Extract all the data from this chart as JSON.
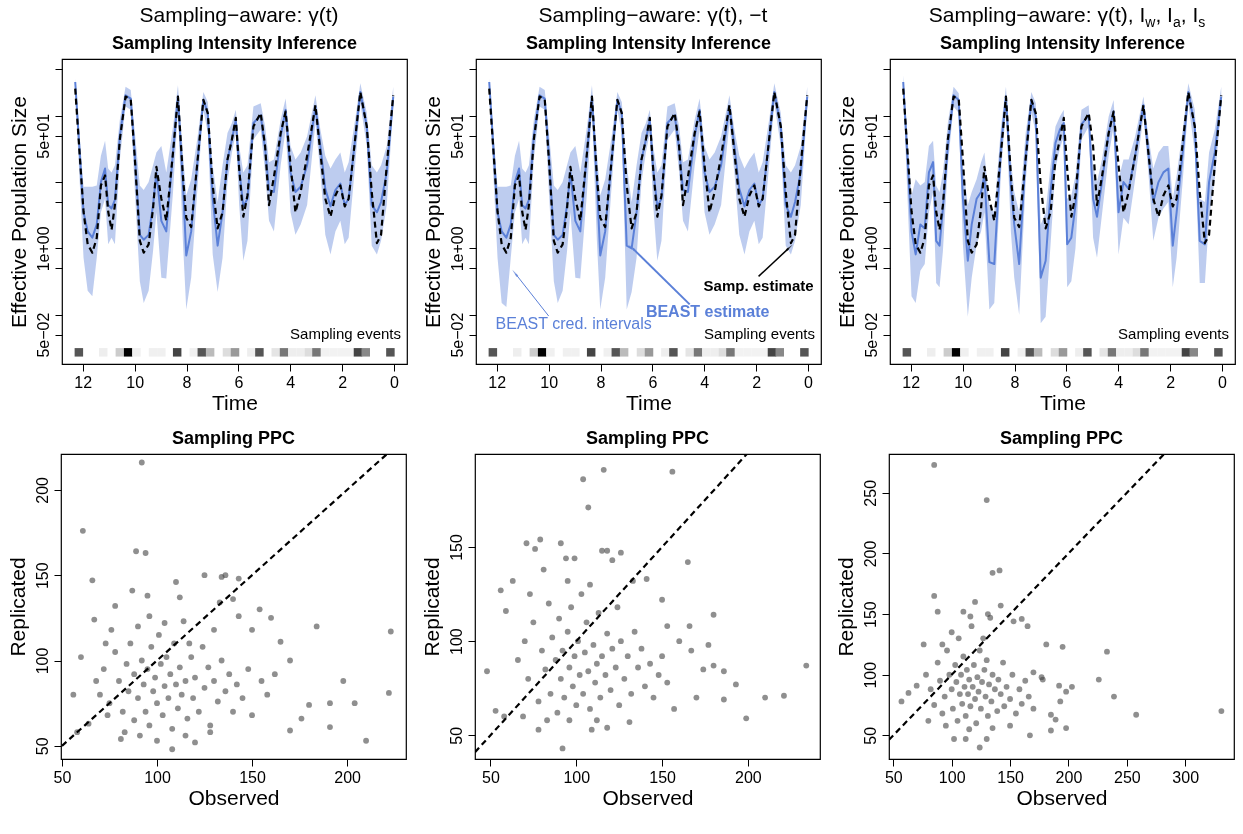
{
  "chart_data": [
    {
      "type": "line",
      "title": "Sampling−aware: γ(t)",
      "subtitle": "Sampling Intensity Inference",
      "xlabel": "Time",
      "ylabel": "Effective Population Size",
      "log": true,
      "xlim": [
        12.8,
        -0.5
      ],
      "xticks": [
        12,
        10,
        8,
        6,
        4,
        2,
        0
      ],
      "ylim": [
        0.018,
        720
      ],
      "yticks": [
        {
          "value": 0.05,
          "label": "5e−02"
        },
        {
          "value": 0.1,
          "label": null
        },
        {
          "value": 0.5,
          "label": null
        },
        {
          "value": 1,
          "label": "1e+00"
        },
        {
          "value": 5,
          "label": null
        },
        {
          "value": 10,
          "label": null
        },
        {
          "value": 50,
          "label": "5e+01"
        },
        {
          "value": 100,
          "label": null
        },
        {
          "value": 500,
          "label": null
        }
      ],
      "x": [
        12.29,
        11.97,
        11.81,
        11.63,
        11.46,
        11.3,
        11.14,
        11.02,
        10.89,
        10.76,
        10.57,
        10.35,
        10.15,
        9.99,
        9.8,
        9.65,
        9.46,
        9.29,
        9.16,
        8.97,
        8.78,
        8.52,
        8.33,
        8.14,
        8.01,
        7.82,
        7.57,
        7.35,
        7.18,
        6.99,
        6.8,
        6.61,
        6.42,
        6.25,
        6.1,
        5.97,
        5.81,
        5.65,
        5.42,
        5.14,
        4.97,
        4.82,
        4.63,
        4.37,
        4.18,
        3.99,
        3.8,
        3.6,
        3.35,
        3.03,
        2.84,
        2.65,
        2.45,
        2.26,
        2.07,
        1.9,
        1.75,
        1.5,
        1.3,
        1.05,
        0.86,
        0.66,
        0.5,
        0.28,
        0.03
      ],
      "annotations": [
        "Sampling events"
      ],
      "series": [
        {
          "color": "#5b80d8",
          "values": [
            324,
            3.5,
            1.8,
            1.45,
            2.3,
            10,
            16,
            4.5,
            4,
            5.4,
            49,
            204,
            182,
            25,
            1.6,
            1.35,
            1.6,
            4.5,
            14,
            2.6,
            1.8,
            28,
            195,
            10,
            0.78,
            1.8,
            22,
            174,
            110,
            5.6,
            1.1,
            3.5,
            22,
            44,
            87,
            16,
            4.3,
            5.6,
            78,
            102,
            32,
            7.6,
            7.1,
            49,
            123,
            14,
            7.1,
            8.5,
            18,
            138,
            35,
            7.9,
            4.3,
            7.6,
            9.5,
            4.5,
            5.6,
            44,
            229,
            69,
            4.5,
            3.5,
            5,
            14,
            195
          ],
          "upper": [
            363,
            8.5,
            8.5,
            8.5,
            8.9,
            25,
            42,
            16,
            14,
            18,
            87,
            275,
            245,
            55,
            8.9,
            7.6,
            10,
            18,
            28,
            35,
            14,
            69,
            288,
            28,
            6.3,
            11,
            49,
            229,
            162,
            18,
            5,
            18,
            55,
            78,
            123,
            35,
            14,
            18,
            138,
            155,
            69,
            20,
            22,
            87,
            182,
            35,
            22,
            28,
            49,
            204,
            62,
            25,
            16,
            22,
            28,
            14,
            20,
            87,
            309,
            110,
            18,
            14,
            18,
            35,
            275
          ],
          "lower": [
            219,
            0.72,
            0.23,
            0.19,
            0.72,
            3.5,
            5.6,
            1.15,
            1.45,
            1.15,
            22,
            138,
            123,
            7.1,
            0.32,
            0.15,
            0.23,
            0.91,
            3.5,
            0.36,
            0.35,
            7.1,
            123,
            1.3,
            0.12,
            0.36,
            8.9,
            123,
            55,
            0.81,
            0.22,
            0.72,
            10,
            28,
            55,
            4.5,
            0.65,
            1.3,
            44,
            62,
            14,
            2.6,
            1.8,
            18,
            62,
            3.5,
            1.6,
            2.3,
            4.5,
            78,
            14,
            1.6,
            0.81,
            1.8,
            2.6,
            1.15,
            1.45,
            18,
            155,
            35,
            1.1,
            0.81,
            1.3,
            4.5,
            138
          ]
        },
        {
          "color": "#000000",
          "line_style": "dashed",
          "values": [
            257,
            3.6,
            1.15,
            0.86,
            1.44,
            8.9,
            12.6,
            3.6,
            1.9,
            4.5,
            44,
            195,
            178,
            22,
            1.3,
            0.86,
            1.15,
            4,
            17,
            5.6,
            2.6,
            28,
            195,
            12.6,
            2.9,
            2.1,
            22,
            174,
            110,
            8.9,
            2.0,
            3.5,
            22,
            44,
            93,
            16,
            3.0,
            6.3,
            69,
            110,
            35,
            4.5,
            12,
            55,
            116,
            18,
            3.5,
            7.1,
            25,
            145,
            28,
            5.6,
            3.0,
            6.3,
            8.9,
            4.3,
            5.6,
            44,
            229,
            69,
            7.1,
            1.2,
            1.6,
            18,
            204
          ]
        },
        {
          "type": "scatter",
          "marker": "square",
          "x": [
            12.15,
            11.21,
            10.57,
            10.25,
            9.93,
            9.29,
            8.97,
            8.36,
            7.72,
            7.41,
            7.09,
            6.44,
            6.13,
            5.5,
            5.19,
            4.56,
            4.24,
            3.92,
            3.6,
            3.28,
            2.99,
            2.65,
            2.33,
            2.01,
            1.69,
            1.39,
            1.09,
            0.14
          ],
          "values": [
            0.027,
            0.027,
            0.027,
            0.027,
            0.027,
            0.027,
            0.027,
            0.027,
            0.027,
            0.027,
            0.027,
            0.027,
            0.027,
            0.027,
            0.027,
            0.027,
            0.027,
            0.027,
            0.027,
            0.027,
            0.027,
            0.027,
            0.027,
            0.027,
            0.027,
            0.027,
            0.027,
            0.027
          ],
          "colors": [
            "#555555",
            "#eeeeee",
            "#cccccc",
            "#000000",
            "#f0f0f0",
            "#f0f0f0",
            "#f0f0f0",
            "#444444",
            "#f0f0f0",
            "#555555",
            "#bbbbbb",
            "#dddddd",
            "#999999",
            "#eeeeee",
            "#555555",
            "#e5e5e5",
            "#777777",
            "#eeeeee",
            "#eeeeee",
            "#dddddd",
            "#777777",
            "#f2f2f2",
            "#f2f2f2",
            "#f2f2f2",
            "#f2f2f2",
            "#444444",
            "#888888",
            "#555555"
          ]
        }
      ]
    },
    {
      "type": "line",
      "title": "Sampling−aware: γ(t), −t",
      "subtitle": "Sampling Intensity Inference",
      "xlabel": "Time",
      "ylabel": "Effective Population Size",
      "log": true,
      "xlim": [
        12.8,
        -0.5
      ],
      "xticks": [
        12,
        10,
        8,
        6,
        4,
        2,
        0
      ],
      "ylim": [
        0.018,
        720
      ],
      "yticks": [
        {
          "value": 0.05,
          "label": "5e−02"
        },
        {
          "value": 0.1,
          "label": null
        },
        {
          "value": 0.5,
          "label": null
        },
        {
          "value": 1,
          "label": "1e+00"
        },
        {
          "value": 5,
          "label": null
        },
        {
          "value": 10,
          "label": null
        },
        {
          "value": 50,
          "label": "5e+01"
        },
        {
          "value": 100,
          "label": null
        },
        {
          "value": 500,
          "label": null
        }
      ],
      "x": [
        12.29,
        11.97,
        11.81,
        11.63,
        11.46,
        11.3,
        11.14,
        11.02,
        10.89,
        10.76,
        10.57,
        10.35,
        10.15,
        9.99,
        9.8,
        9.65,
        9.46,
        9.29,
        9.16,
        8.97,
        8.78,
        8.52,
        8.33,
        8.14,
        8.01,
        7.82,
        7.57,
        7.35,
        7.18,
        6.99,
        6.8,
        6.61,
        6.42,
        6.25,
        6.1,
        5.97,
        5.81,
        5.65,
        5.42,
        5.14,
        4.97,
        4.82,
        4.63,
        4.37,
        4.18,
        3.99,
        3.8,
        3.6,
        3.35,
        3.03,
        2.84,
        2.65,
        2.45,
        2.26,
        2.07,
        1.9,
        1.75,
        1.5,
        1.3,
        1.05,
        0.86,
        0.66,
        0.5,
        0.28,
        0.03
      ],
      "annotations": [
        "Sampling events",
        {
          "text": "BEAST cred. intervals",
          "x": 11.27,
          "y": 0.41
        },
        {
          "text": "BEAST estimate",
          "x": 6.76,
          "y": 1
        },
        {
          "text": "Samp. estimate",
          "x": 0.75,
          "y": 1
        }
      ],
      "series": [
        {
          "color": "#5b80d8",
          "values": [
            324,
            3.5,
            1.8,
            1.45,
            2.3,
            10,
            16,
            4.5,
            4,
            5.4,
            49,
            204,
            182,
            25,
            1.6,
            1.35,
            1.6,
            4.5,
            14,
            2.6,
            1.8,
            28,
            195,
            10,
            0.78,
            1.8,
            22,
            174,
            110,
            1.1,
            1.0,
            3.5,
            22,
            44,
            87,
            16,
            4.3,
            5.6,
            78,
            102,
            32,
            7.6,
            7.1,
            49,
            123,
            14,
            7.1,
            8.5,
            18,
            138,
            35,
            7.9,
            4.3,
            7.6,
            9.5,
            4.5,
            5.6,
            44,
            229,
            69,
            4.5,
            3.0,
            5,
            14,
            195
          ],
          "upper": [
            363,
            8.5,
            8.5,
            8.5,
            8.9,
            25,
            42,
            16,
            14,
            18,
            87,
            275,
            245,
            55,
            8.9,
            7.6,
            10,
            18,
            28,
            35,
            14,
            69,
            288,
            28,
            6.3,
            11,
            49,
            229,
            162,
            18,
            5,
            18,
            55,
            78,
            123,
            35,
            14,
            18,
            138,
            155,
            69,
            20,
            22,
            87,
            182,
            35,
            22,
            28,
            49,
            204,
            62,
            25,
            16,
            22,
            28,
            14,
            20,
            87,
            309,
            110,
            18,
            14,
            18,
            35,
            275
          ],
          "lower": [
            219,
            0.72,
            0.15,
            0.13,
            0.72,
            3.5,
            5.6,
            1.15,
            1.45,
            1.15,
            22,
            138,
            123,
            7.1,
            0.32,
            0.15,
            0.23,
            0.91,
            3.5,
            0.36,
            0.35,
            7.1,
            123,
            1.3,
            0.12,
            0.36,
            8.9,
            123,
            55,
            0.12,
            0.22,
            0.72,
            10,
            28,
            55,
            4.5,
            0.65,
            1.3,
            44,
            62,
            14,
            2.6,
            1.8,
            18,
            62,
            3.5,
            1.6,
            2.3,
            4.5,
            78,
            14,
            1.6,
            0.81,
            1.8,
            2.6,
            1.15,
            1.45,
            18,
            155,
            35,
            1.1,
            0.81,
            1.3,
            4.5,
            138
          ]
        },
        {
          "color": "#000000",
          "line_style": "dashed",
          "values": [
            257,
            3.6,
            1.15,
            0.86,
            1.44,
            8.9,
            12.6,
            3.6,
            1.9,
            4.5,
            44,
            195,
            178,
            22,
            1.3,
            0.86,
            1.15,
            4,
            17,
            5.6,
            2.6,
            28,
            195,
            12.6,
            2.9,
            2.1,
            22,
            174,
            110,
            8.9,
            2.0,
            3.5,
            22,
            44,
            93,
            16,
            3.0,
            6.3,
            69,
            110,
            35,
            4.5,
            12,
            55,
            116,
            18,
            3.5,
            7.1,
            25,
            145,
            28,
            5.6,
            3.0,
            6.3,
            8.9,
            4.3,
            5.6,
            44,
            229,
            69,
            7.1,
            1.2,
            1.6,
            18,
            204
          ]
        },
        {
          "type": "scatter",
          "marker": "square",
          "x": [
            12.15,
            11.21,
            10.57,
            10.25,
            9.93,
            9.29,
            8.97,
            8.36,
            7.72,
            7.41,
            7.09,
            6.44,
            6.13,
            5.5,
            5.19,
            4.56,
            4.24,
            3.92,
            3.6,
            3.28,
            2.99,
            2.65,
            2.33,
            2.01,
            1.69,
            1.39,
            1.09,
            0.14
          ],
          "values": [
            0.027,
            0.027,
            0.027,
            0.027,
            0.027,
            0.027,
            0.027,
            0.027,
            0.027,
            0.027,
            0.027,
            0.027,
            0.027,
            0.027,
            0.027,
            0.027,
            0.027,
            0.027,
            0.027,
            0.027,
            0.027,
            0.027,
            0.027,
            0.027,
            0.027,
            0.027,
            0.027,
            0.027
          ],
          "colors": [
            "#555555",
            "#eeeeee",
            "#cccccc",
            "#000000",
            "#f0f0f0",
            "#f0f0f0",
            "#f0f0f0",
            "#444444",
            "#f0f0f0",
            "#555555",
            "#bbbbbb",
            "#dddddd",
            "#999999",
            "#eeeeee",
            "#555555",
            "#e5e5e5",
            "#777777",
            "#eeeeee",
            "#eeeeee",
            "#dddddd",
            "#777777",
            "#f2f2f2",
            "#f2f2f2",
            "#f2f2f2",
            "#f2f2f2",
            "#444444",
            "#888888",
            "#555555"
          ]
        }
      ]
    },
    {
      "type": "line",
      "title": "Sampling−aware: γ(t), I$_{w}$, I$_{a}$, I$_{s}$",
      "subtitle": "Sampling Intensity Inference",
      "xlabel": "Time",
      "ylabel": "Effective Population Size",
      "log": true,
      "xlim": [
        12.8,
        -0.5
      ],
      "xticks": [
        12,
        10,
        8,
        6,
        4,
        2,
        0
      ],
      "ylim": [
        0.018,
        720
      ],
      "yticks": [
        {
          "value": 0.05,
          "label": "5e−02"
        },
        {
          "value": 0.1,
          "label": null
        },
        {
          "value": 0.5,
          "label": null
        },
        {
          "value": 1,
          "label": "1e+00"
        },
        {
          "value": 5,
          "label": null
        },
        {
          "value": 10,
          "label": null
        },
        {
          "value": 50,
          "label": "5e+01"
        },
        {
          "value": 100,
          "label": null
        },
        {
          "value": 500,
          "label": null
        }
      ],
      "x": [
        12.29,
        11.97,
        11.81,
        11.63,
        11.46,
        11.3,
        11.14,
        11.02,
        10.89,
        10.76,
        10.57,
        10.35,
        10.15,
        9.99,
        9.8,
        9.65,
        9.46,
        9.29,
        9.16,
        8.97,
        8.78,
        8.52,
        8.33,
        8.14,
        8.01,
        7.82,
        7.57,
        7.35,
        7.18,
        6.99,
        6.8,
        6.61,
        6.42,
        6.25,
        6.1,
        5.97,
        5.81,
        5.65,
        5.42,
        5.14,
        4.97,
        4.82,
        4.63,
        4.37,
        4.18,
        3.99,
        3.8,
        3.6,
        3.35,
        3.03,
        2.84,
        2.65,
        2.45,
        2.26,
        2.07,
        1.9,
        1.75,
        1.5,
        1.3,
        1.05,
        0.86,
        0.66,
        0.5,
        0.28,
        0.03
      ],
      "annotations": [
        "Sampling events"
      ],
      "series": [
        {
          "color": "#5b80d8",
          "values": [
            324,
            1.8,
            0.81,
            2.3,
            2.0,
            14,
            20,
            1.3,
            1.1,
            4,
            35,
            204,
            174,
            5.6,
            0.65,
            2.3,
            5.6,
            7.1,
            12.6,
            0.62,
            0.58,
            35,
            195,
            8.9,
            2.3,
            0.58,
            25,
            174,
            98,
            0.36,
            0.65,
            7.1,
            39,
            62,
            78,
            1.15,
            1.45,
            4.5,
            74,
            102,
            5.6,
            3.0,
            10,
            55,
            116,
            3.5,
            10,
            7.9,
            25,
            145,
            28,
            5,
            10,
            14,
            16,
            1.1,
            3.5,
            32,
            229,
            69,
            1.3,
            1.15,
            10,
            28,
            195
          ],
          "upper": [
            407,
            6.3,
            11,
            8.9,
            10,
            35,
            42,
            8.9,
            7.1,
            14,
            78,
            275,
            219,
            18,
            4.5,
            7.1,
            11,
            20,
            28,
            4.5,
            3.5,
            69,
            275,
            22,
            7.1,
            3.5,
            55,
            229,
            155,
            2.3,
            3.5,
            18,
            69,
            98,
            123,
            5.6,
            6.3,
            12.6,
            123,
            145,
            18,
            10,
            22,
            98,
            174,
            11,
            22,
            22,
            49,
            195,
            49,
            16,
            28,
            35,
            35,
            5.6,
            12.6,
            69,
            309,
            123,
            5.6,
            5,
            28,
            62,
            275
          ],
          "lower": [
            229,
            0.19,
            0.15,
            0.46,
            0.58,
            3.5,
            7.1,
            0.3,
            0.26,
            0.91,
            18,
            138,
            110,
            1.15,
            0.093,
            0.36,
            1.15,
            1.8,
            3.5,
            0.12,
            0.15,
            14,
            123,
            1.8,
            0.36,
            0.1,
            10,
            110,
            55,
            0.074,
            0.093,
            1.15,
            16,
            32,
            49,
            0.26,
            0.32,
            1.0,
            44,
            69,
            1.45,
            0.72,
            3.2,
            25,
            69,
            0.81,
            2.9,
            2.3,
            11,
            98,
            14,
            1.3,
            2.9,
            4,
            5,
            0.26,
            0.72,
            12.6,
            155,
            28,
            0.3,
            0.3,
            2.9,
            11,
            138
          ]
        },
        {
          "color": "#000000",
          "line_style": "dashed",
          "values": [
            257,
            3.6,
            1.15,
            0.86,
            1.44,
            8.9,
            12.6,
            3.6,
            1.9,
            4.5,
            44,
            195,
            178,
            22,
            1.3,
            0.86,
            1.15,
            4,
            17,
            5.6,
            2.6,
            28,
            195,
            12.6,
            2.9,
            2.1,
            22,
            174,
            110,
            8.9,
            2.0,
            3.5,
            22,
            44,
            93,
            16,
            3.0,
            6.3,
            69,
            110,
            35,
            4.5,
            12,
            55,
            116,
            18,
            3.5,
            7.1,
            25,
            145,
            28,
            5.6,
            3.0,
            6.3,
            8.9,
            4.3,
            5.6,
            44,
            229,
            69,
            7.1,
            1.2,
            1.6,
            18,
            204
          ]
        },
        {
          "type": "scatter",
          "marker": "square",
          "x": [
            12.15,
            11.21,
            10.57,
            10.25,
            9.93,
            9.29,
            8.97,
            8.36,
            7.72,
            7.41,
            7.09,
            6.44,
            6.13,
            5.5,
            5.19,
            4.56,
            4.24,
            3.92,
            3.6,
            3.28,
            2.99,
            2.65,
            2.33,
            2.01,
            1.69,
            1.39,
            1.09,
            0.14
          ],
          "values": [
            0.027,
            0.027,
            0.027,
            0.027,
            0.027,
            0.027,
            0.027,
            0.027,
            0.027,
            0.027,
            0.027,
            0.027,
            0.027,
            0.027,
            0.027,
            0.027,
            0.027,
            0.027,
            0.027,
            0.027,
            0.027,
            0.027,
            0.027,
            0.027,
            0.027,
            0.027,
            0.027,
            0.027
          ],
          "colors": [
            "#555555",
            "#eeeeee",
            "#cccccc",
            "#000000",
            "#f0f0f0",
            "#f0f0f0",
            "#f0f0f0",
            "#444444",
            "#f0f0f0",
            "#555555",
            "#bbbbbb",
            "#dddddd",
            "#999999",
            "#eeeeee",
            "#555555",
            "#e5e5e5",
            "#777777",
            "#eeeeee",
            "#eeeeee",
            "#dddddd",
            "#777777",
            "#f2f2f2",
            "#f2f2f2",
            "#f2f2f2",
            "#f2f2f2",
            "#444444",
            "#888888",
            "#555555"
          ]
        }
      ]
    },
    {
      "type": "scatter",
      "title": "Sampling PPC",
      "xlabel": "Observed",
      "ylabel": "Replicated",
      "xlim": [
        49.5,
        231
      ],
      "xticks": [
        50,
        100,
        150,
        200
      ],
      "ylim": [
        42.3,
        221
      ],
      "yticks": [
        50,
        100,
        150,
        200
      ],
      "series": [
        {
          "color": "#444444",
          "marker": "circle",
          "x": [
            92,
            61,
            89,
            94,
            66,
            125,
            134,
            136,
            143,
            110,
            56,
            58,
            184,
            223,
            222,
            210,
            198,
            204,
            191,
            191,
            176,
            170,
            180,
            170,
            165,
            160,
            154,
            150,
            108,
            100,
            120,
            81,
            87,
            95,
            112,
            140,
            67,
            78,
            143,
            133,
            60,
            64,
            70,
            72,
            75,
            78,
            80,
            82,
            84,
            85,
            86,
            88,
            88,
            90,
            90,
            92,
            93,
            94,
            95,
            96,
            97,
            98,
            99,
            100,
            101,
            102,
            103,
            104,
            105,
            106,
            107,
            108,
            109,
            110,
            111,
            112,
            113,
            114,
            115,
            116,
            118,
            119,
            120,
            122,
            124,
            125,
            127,
            128,
            130,
            132,
            134,
            136,
            138,
            140,
            142,
            145,
            148,
            150,
            155,
            158,
            162,
            76,
            83,
            91,
            115,
            128,
            74,
            68,
            73,
            96,
            104,
            117,
            130
          ],
          "values": [
            216,
            176,
            164,
            163,
            147,
            150,
            149,
            150,
            148,
            146,
            80,
            58,
            120,
            117,
            81,
            53,
            88,
            75,
            61,
            75,
            66,
            59,
            74,
            100,
            111,
            125,
            130,
            118,
            48,
            53,
            52,
            54,
            141,
            138,
            137,
            136,
            124,
            132,
            126,
            134,
            102,
            63,
            80,
            95,
            75,
            105,
            88,
            70,
            98,
            82,
            110,
            65,
            92,
            78,
            120,
            100,
            86,
            70,
            95,
            62,
            108,
            82,
            90,
            75,
            115,
            98,
            68,
            85,
            102,
            78,
            92,
            60,
            110,
            86,
            72,
            96,
            80,
            123,
            88,
            66,
            102,
            78,
            90,
            70,
            108,
            84,
            96,
            62,
            88,
            76,
            100,
            82,
            92,
            70,
            86,
            78,
            95,
            68,
            88,
            80,
            92,
            118,
            58,
            56,
            56,
            58,
            68,
            88,
            110,
            126,
            122,
            110,
            118
          ]
        },
        {
          "type": "line",
          "color": "#000000",
          "line_style": "dashed",
          "x": [
            50,
            221
          ],
          "values": [
            50,
            221
          ]
        }
      ]
    },
    {
      "type": "scatter",
      "title": "Sampling PPC",
      "xlabel": "Observed",
      "ylabel": "Replicated",
      "xlim": [
        41,
        242
      ],
      "xticks": [
        50,
        100,
        150,
        200
      ],
      "ylim": [
        37.4,
        199.4
      ],
      "yticks": [
        50,
        100,
        150
      ],
      "series": [
        {
          "color": "#444444",
          "marker": "circle",
          "x": [
            116,
            156,
            104,
            107,
            48,
            53,
            56,
            59,
            58,
            63,
            71,
            79,
            76,
            91,
            94,
            99,
            115,
            118,
            126,
            121,
            165,
            141,
            133,
            150,
            180,
            166,
            153,
            160,
            177,
            167,
            180,
            186,
            193,
            186,
            199,
            210,
            221,
            234,
            92,
            78,
            109,
            118,
            131,
            157,
            170,
            174,
            66,
            70,
            72,
            75,
            78,
            80,
            82,
            84,
            85,
            86,
            88,
            89,
            90,
            91,
            92,
            93,
            95,
            96,
            97,
            98,
            99,
            100,
            101,
            102,
            103,
            104,
            105,
            106,
            107,
            108,
            110,
            111,
            112,
            113,
            114,
            115,
            117,
            118,
            120,
            121,
            123,
            125,
            126,
            128,
            130,
            132,
            134,
            136,
            138,
            140,
            143,
            145,
            148,
            150,
            153,
            73,
            81,
            95,
            108,
            124,
            69,
            83,
            96,
            112
          ],
          "values": [
            191,
            190,
            186,
            171,
            84,
            63,
            127,
            116,
            60,
            132,
            152,
            154,
            149,
            152,
            144,
            144,
            148,
            148,
            147,
            143,
            142,
            133,
            132,
            122,
            114,
            108,
            108,
            100,
            98,
            95,
            87,
            84,
            77,
            69,
            59,
            70,
            71,
            87,
            43,
            53,
            53,
            54,
            57,
            64,
            70,
            85,
            90,
            100,
            80,
            110,
            68,
            95,
            85,
            120,
            72,
            102,
            90,
            62,
            112,
            80,
            95,
            70,
            105,
            86,
            118,
            76,
            92,
            66,
            100,
            82,
            125,
            72,
            94,
            110,
            84,
            64,
            98,
            78,
            88,
            115,
            70,
            92,
            82,
            104,
            74,
            96,
            86,
            66,
            100,
            80,
            92,
            72,
            105,
            86,
            96,
            76,
            88,
            70,
            82,
            92,
            78,
            125,
            138,
            132,
            130,
            118,
            60,
            58,
            58,
            58
          ]
        },
        {
          "type": "line",
          "color": "#000000",
          "line_style": "dashed",
          "x": [
            41,
            199.4
          ],
          "values": [
            41,
            199.4
          ]
        }
      ]
    },
    {
      "type": "scatter",
      "title": "Sampling PPC",
      "xlabel": "Observed",
      "ylabel": "Replicated",
      "xlim": [
        46.3,
        341.8
      ],
      "xticks": [
        50,
        100,
        150,
        200,
        250,
        300
      ],
      "ylim": [
        30.5,
        282
      ],
      "yticks": [
        50,
        100,
        150,
        200,
        250
      ],
      "series": [
        {
          "color": "#444444",
          "marker": "circle",
          "x": [
            85,
            130,
            135,
            141,
            85,
            88,
            120,
            142,
            110,
            116,
            131,
            133,
            160,
            165,
            153,
            181,
            195,
            233,
            226,
            239,
            258,
            331,
            203,
            198,
            192,
            193,
            185,
            189,
            198,
            185,
            167,
            130,
            124,
            102,
            112,
            57,
            63,
            70,
            76,
            177,
            170,
            178,
            78,
            82,
            85,
            88,
            90,
            92,
            94,
            96,
            98,
            100,
            101,
            103,
            104,
            105,
            106,
            107,
            108,
            109,
            110,
            111,
            112,
            113,
            114,
            115,
            116,
            117,
            118,
            119,
            120,
            121,
            122,
            123,
            124,
            125,
            126,
            128,
            129,
            130,
            131,
            132,
            134,
            135,
            137,
            139,
            140,
            142,
            144,
            145,
            147,
            150,
            152,
            155,
            158,
            160,
            163,
            166,
            170,
            80,
            95,
            115,
            135,
            150,
            100,
            127,
            92
          ],
          "values": [
            273,
            244,
            184,
            186,
            165,
            152,
            160,
            157,
            152,
            148,
            150,
            147,
            146,
            140,
            144,
            125,
            123,
            119,
            96,
            82,
            67,
            70,
            90,
            86,
            91,
            78,
            67,
            63,
            56,
            54,
            50,
            47,
            40,
            47,
            47,
            78,
            85,
            91,
            125,
            98,
            102,
            96,
            100,
            88,
            75,
            110,
            95,
            68,
            82,
            120,
            100,
            88,
            72,
            108,
            94,
            62,
            130,
            84,
            100,
            76,
            115,
            90,
            66,
            104,
            84,
            96,
            74,
            140,
            90,
            108,
            80,
            60,
            98,
            86,
            120,
            72,
            94,
            104,
            82,
            112,
            66,
            92,
            78,
            100,
            88,
            70,
            96,
            84,
            110,
            74,
            90,
            80,
            100,
            68,
            88,
            76,
            95,
            82,
            72,
            62,
            58,
            55,
            56,
            58,
            135,
            130,
            125
          ]
        },
        {
          "type": "line",
          "color": "#000000",
          "line_style": "dashed",
          "x": [
            46.3,
            282
          ],
          "values": [
            46.3,
            282
          ]
        }
      ]
    }
  ]
}
